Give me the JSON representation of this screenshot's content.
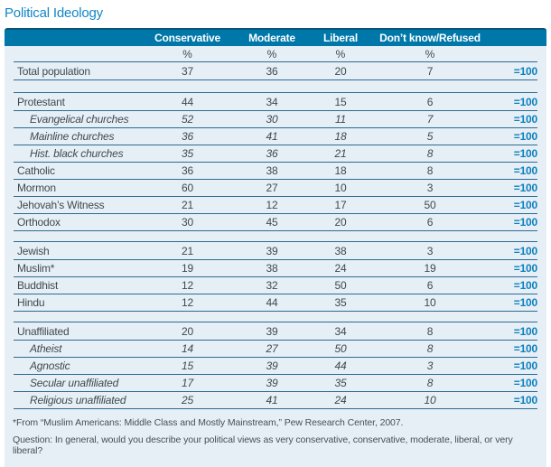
{
  "title": "Political Ideology",
  "colors": {
    "header_bar": "#0077a9",
    "header_bar_top_edge": "#0a5578",
    "panel_background": "#e7eff6",
    "rule_line": "#2d6a91",
    "body_text": "#3e4950",
    "total_text": "#0d80bd",
    "title_text": "#1287c6"
  },
  "table": {
    "columns": [
      "Conservative",
      "Moderate",
      "Liberal",
      "Don’t know/Refused"
    ],
    "unit_row": [
      "%",
      "%",
      "%",
      "%"
    ],
    "total_label": "=100",
    "groups": [
      {
        "rows": [
          {
            "label": "Total population",
            "italic": false,
            "values": [
              37,
              36,
              20,
              7
            ]
          }
        ]
      },
      {
        "rows": [
          {
            "label": "Protestant",
            "italic": false,
            "values": [
              44,
              34,
              15,
              6
            ]
          },
          {
            "label": "Evangelical churches",
            "italic": true,
            "values": [
              52,
              30,
              11,
              7
            ]
          },
          {
            "label": "Mainline churches",
            "italic": true,
            "values": [
              36,
              41,
              18,
              5
            ]
          },
          {
            "label": "Hist. black churches",
            "italic": true,
            "values": [
              35,
              36,
              21,
              8
            ]
          },
          {
            "label": "Catholic",
            "italic": false,
            "values": [
              36,
              38,
              18,
              8
            ]
          },
          {
            "label": "Mormon",
            "italic": false,
            "values": [
              60,
              27,
              10,
              3
            ]
          },
          {
            "label": "Jehovah’s Witness",
            "italic": false,
            "values": [
              21,
              12,
              17,
              50
            ]
          },
          {
            "label": "Orthodox",
            "italic": false,
            "values": [
              30,
              45,
              20,
              6
            ]
          }
        ]
      },
      {
        "rows": [
          {
            "label": "Jewish",
            "italic": false,
            "values": [
              21,
              39,
              38,
              3
            ]
          },
          {
            "label": "Muslim*",
            "italic": false,
            "values": [
              19,
              38,
              24,
              19
            ]
          },
          {
            "label": "Buddhist",
            "italic": false,
            "values": [
              12,
              32,
              50,
              6
            ]
          },
          {
            "label": "Hindu",
            "italic": false,
            "values": [
              12,
              44,
              35,
              10
            ]
          }
        ]
      },
      {
        "rows": [
          {
            "label": "Unaffiliated",
            "italic": false,
            "values": [
              20,
              39,
              34,
              8
            ]
          },
          {
            "label": "Atheist",
            "italic": true,
            "values": [
              14,
              27,
              50,
              8
            ]
          },
          {
            "label": "Agnostic",
            "italic": true,
            "values": [
              15,
              39,
              44,
              3
            ]
          },
          {
            "label": "Secular unaffiliated",
            "italic": true,
            "values": [
              17,
              39,
              35,
              8
            ]
          },
          {
            "label": "Religious unaffiliated",
            "italic": true,
            "values": [
              25,
              41,
              24,
              10
            ]
          }
        ]
      }
    ]
  },
  "footnotes": {
    "source": "*From “Muslim Americans: Middle Class and Mostly Mainstream,” Pew Research Center, 2007.",
    "question": "Question: In general, would you describe your political views as very conservative, conservative, moderate, liberal, or very liberal?"
  }
}
